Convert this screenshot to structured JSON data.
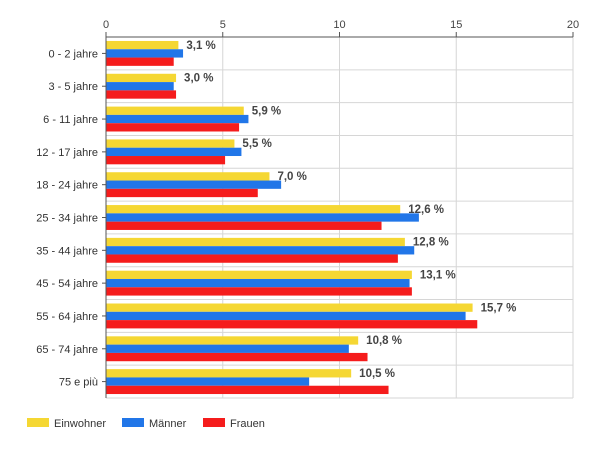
{
  "chart_data": {
    "type": "bar",
    "orientation": "horizontal",
    "categories": [
      "0 - 2 jahre",
      "3 - 5 jahre",
      "6 - 11 jahre",
      "12 - 17 jahre",
      "18 - 24 jahre",
      "25 - 34 jahre",
      "35 - 44 jahre",
      "45 - 54 jahre",
      "55 - 64 jahre",
      "65 - 74 jahre",
      "75 e più"
    ],
    "series": [
      {
        "name": "Einwohner",
        "color": "#f5d733",
        "values": [
          3.1,
          3.0,
          5.9,
          5.5,
          7.0,
          12.6,
          12.8,
          13.1,
          15.7,
          10.8,
          10.5
        ]
      },
      {
        "name": "Männer",
        "color": "#2176e8",
        "values": [
          3.3,
          2.9,
          6.1,
          5.8,
          7.5,
          13.4,
          13.2,
          13.0,
          15.4,
          10.4,
          8.7
        ]
      },
      {
        "name": "Frauen",
        "color": "#f51c1c",
        "values": [
          2.9,
          3.0,
          5.7,
          5.1,
          6.5,
          11.8,
          12.5,
          13.1,
          15.9,
          11.2,
          12.1
        ]
      }
    ],
    "data_labels": [
      "3,1 %",
      "3,0 %",
      "5,9 %",
      "5,5 %",
      "7,0 %",
      "12,6 %",
      "12,8 %",
      "13,1 %",
      "15,7 %",
      "10,8 %",
      "10,5 %"
    ],
    "x_ticks": [
      0,
      5,
      10,
      15,
      20
    ],
    "xlim": [
      0,
      20
    ],
    "x_axis_position": "top",
    "grid": true,
    "legend": "bottom-left"
  }
}
